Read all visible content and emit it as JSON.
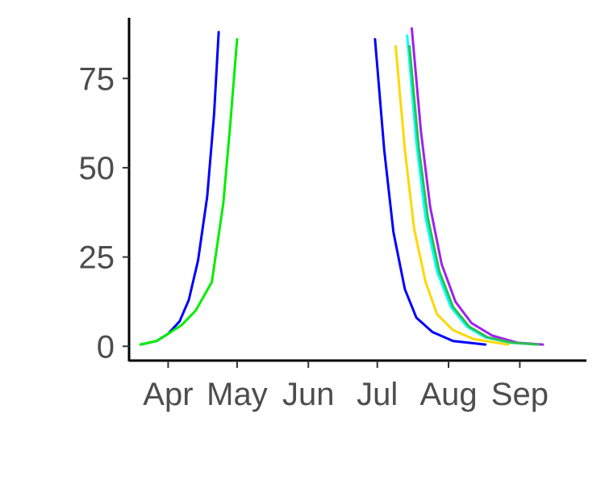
{
  "chart_data": {
    "type": "line",
    "title": "",
    "xlabel": "",
    "ylabel": "",
    "x_axis": "date",
    "xlim": [
      "2020-03-15",
      "2020-09-30"
    ],
    "ylim": [
      -4,
      92
    ],
    "grid": false,
    "legend": "none",
    "x_ticks": [
      {
        "date": "2020-04-01",
        "label": "Apr"
      },
      {
        "date": "2020-05-01",
        "label": "May"
      },
      {
        "date": "2020-06-01",
        "label": "Jun"
      },
      {
        "date": "2020-07-01",
        "label": "Jul"
      },
      {
        "date": "2020-08-01",
        "label": "Aug"
      },
      {
        "date": "2020-09-01",
        "label": "Sep"
      }
    ],
    "y_ticks": [
      {
        "value": 0,
        "label": "0"
      },
      {
        "value": 25,
        "label": "25"
      },
      {
        "value": 50,
        "label": "50"
      },
      {
        "value": 75,
        "label": "75"
      }
    ],
    "series": [
      {
        "color": "#0000ff",
        "points": [
          [
            "2020-03-20",
            0.5
          ],
          [
            "2020-03-27",
            1.5
          ],
          [
            "2020-04-01",
            3.5
          ],
          [
            "2020-04-06",
            7
          ],
          [
            "2020-04-10",
            13
          ],
          [
            "2020-04-14",
            24
          ],
          [
            "2020-04-18",
            42
          ],
          [
            "2020-04-21",
            65
          ],
          [
            "2020-04-23",
            88
          ]
        ]
      },
      {
        "color": "#00ee00",
        "points": [
          [
            "2020-03-20",
            0.5
          ],
          [
            "2020-03-27",
            1.5
          ],
          [
            "2020-04-01",
            3.5
          ],
          [
            "2020-04-07",
            6
          ],
          [
            "2020-04-13",
            10
          ],
          [
            "2020-04-20",
            18
          ],
          [
            "2020-04-25",
            40
          ],
          [
            "2020-04-28",
            62
          ],
          [
            "2020-05-01",
            86
          ]
        ]
      },
      {
        "color": "#0000ff",
        "points": [
          [
            "2020-06-30",
            86
          ],
          [
            "2020-07-04",
            55
          ],
          [
            "2020-07-08",
            32
          ],
          [
            "2020-07-13",
            16
          ],
          [
            "2020-07-18",
            8
          ],
          [
            "2020-07-25",
            4
          ],
          [
            "2020-08-03",
            1.5
          ],
          [
            "2020-08-17",
            0.5
          ]
        ]
      },
      {
        "color": "#ffd700",
        "points": [
          [
            "2020-07-09",
            84
          ],
          [
            "2020-07-13",
            55
          ],
          [
            "2020-07-17",
            33
          ],
          [
            "2020-07-22",
            18
          ],
          [
            "2020-07-27",
            9
          ],
          [
            "2020-08-03",
            4.5
          ],
          [
            "2020-08-12",
            2
          ],
          [
            "2020-08-27",
            0.5
          ]
        ]
      },
      {
        "color": "#00ffff",
        "points": [
          [
            "2020-07-14",
            87
          ],
          [
            "2020-07-18",
            57
          ],
          [
            "2020-07-22",
            36
          ],
          [
            "2020-07-27",
            21
          ],
          [
            "2020-08-02",
            11
          ],
          [
            "2020-08-09",
            5.5
          ],
          [
            "2020-08-17",
            2.5
          ],
          [
            "2020-08-28",
            1
          ],
          [
            "2020-09-09",
            0.5
          ]
        ]
      },
      {
        "color": "#a020f0",
        "points": [
          [
            "2020-07-16",
            89
          ],
          [
            "2020-07-20",
            60
          ],
          [
            "2020-07-24",
            39
          ],
          [
            "2020-07-29",
            23
          ],
          [
            "2020-08-04",
            12.5
          ],
          [
            "2020-08-11",
            6.5
          ],
          [
            "2020-08-20",
            3
          ],
          [
            "2020-08-31",
            1
          ],
          [
            "2020-09-11",
            0.5
          ]
        ]
      },
      {
        "color": "#2fbf4f",
        "points": [
          [
            "2020-07-15",
            84
          ],
          [
            "2020-07-19",
            56
          ],
          [
            "2020-07-23",
            36
          ],
          [
            "2020-07-28",
            21
          ],
          [
            "2020-08-03",
            11
          ],
          [
            "2020-08-10",
            5.5
          ],
          [
            "2020-08-18",
            2.5
          ],
          [
            "2020-08-29",
            1
          ],
          [
            "2020-09-09",
            0.5
          ]
        ]
      }
    ]
  }
}
